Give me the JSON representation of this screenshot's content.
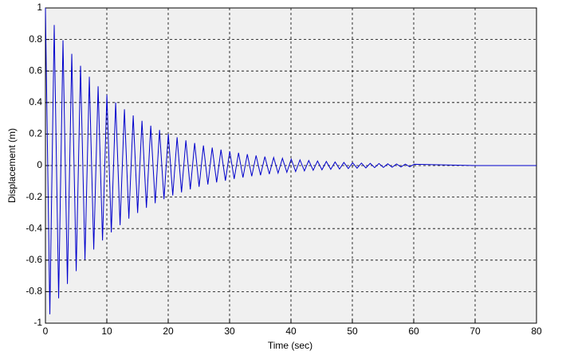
{
  "chart_data": {
    "type": "line",
    "x_label": "Time (sec)",
    "y_label": "Displacement (m)",
    "x": [
      0,
      0.72,
      1.43,
      2.15,
      2.86,
      3.58,
      4.29,
      5.01,
      5.72,
      6.44,
      7.15,
      7.87,
      8.58,
      9.3,
      10.01,
      10.73,
      11.44,
      12.16,
      12.87,
      13.59,
      14.3,
      15.02,
      15.73,
      16.45,
      17.16,
      17.88,
      18.59,
      19.31,
      20.02,
      20.74,
      21.45,
      22.17,
      22.88,
      23.6,
      24.31,
      25.03,
      25.74,
      26.46,
      27.17,
      27.89,
      28.6,
      29.32,
      30.03,
      30.75,
      31.46,
      32.18,
      32.89,
      33.61,
      34.32,
      35.04,
      35.75,
      36.47,
      37.18,
      37.9,
      38.61,
      39.33,
      40.04,
      40.76,
      41.47,
      42.19,
      42.9,
      43.62,
      44.33,
      45.05,
      45.76,
      46.48,
      47.19,
      47.91,
      48.62,
      49.34,
      50.05,
      50.77,
      51.48,
      52.2,
      52.91,
      53.63,
      54.34,
      55.06,
      55.77,
      56.49,
      57.2,
      57.92,
      58.63,
      59.35,
      60.06,
      70,
      80
    ],
    "series": [
      {
        "color": "#0000cc",
        "values": [
          1,
          -0.944,
          0.892,
          -0.842,
          0.795,
          -0.751,
          0.709,
          -0.67,
          0.633,
          -0.597,
          0.564,
          -0.533,
          0.503,
          -0.475,
          0.449,
          -0.424,
          0.4,
          -0.378,
          0.357,
          -0.337,
          0.318,
          -0.301,
          0.284,
          -0.268,
          0.253,
          -0.239,
          0.226,
          -0.213,
          0.201,
          -0.19,
          0.18,
          -0.17,
          0.16,
          -0.151,
          0.143,
          -0.135,
          0.127,
          -0.12,
          0.114,
          -0.107,
          0.101,
          -0.096,
          0.09,
          -0.085,
          0.081,
          -0.076,
          0.072,
          -0.068,
          0.064,
          -0.061,
          0.057,
          -0.054,
          0.051,
          -0.048,
          0.046,
          -0.043,
          0.041,
          -0.038,
          0.036,
          -0.034,
          0.032,
          -0.03,
          0.029,
          -0.027,
          0.026,
          -0.024,
          0.023,
          -0.022,
          0.02,
          -0.019,
          0.018,
          -0.017,
          0.016,
          -0.015,
          0.014,
          -0.013,
          0.013,
          -0.012,
          0.011,
          -0.011,
          0.01,
          -0.009,
          0.009,
          -0.008,
          0.008,
          0,
          0
        ]
      }
    ],
    "xlim": [
      0,
      80
    ],
    "xticks": [
      0,
      10,
      20,
      30,
      40,
      50,
      60,
      70,
      80
    ],
    "ylim": [
      -1,
      1
    ],
    "yticks": [
      -1,
      -0.8,
      -0.6,
      -0.4,
      -0.2,
      0,
      0.2,
      0.4,
      0.6,
      0.8,
      1
    ],
    "grid": true
  }
}
